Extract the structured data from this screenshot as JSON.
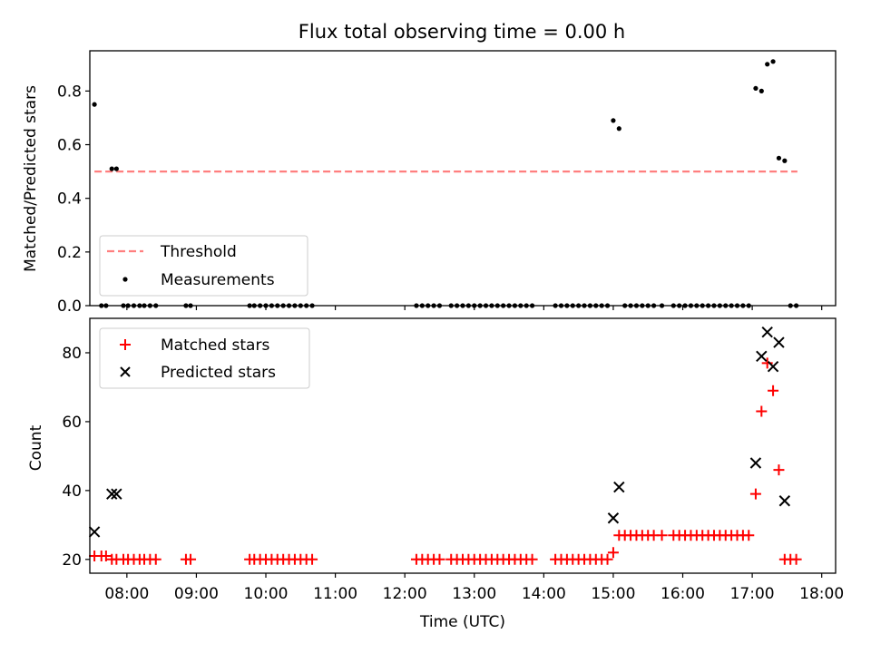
{
  "chart_data": [
    {
      "type": "scatter",
      "title": "Flux total observing time = 0.00 h",
      "xlabel": "",
      "ylabel": "Matched/Predicted stars",
      "xlim": [
        "07:28",
        "18:12"
      ],
      "ylim": [
        0,
        0.95
      ],
      "y_ticks": [
        "0.0",
        "0.2",
        "0.4",
        "0.6",
        "0.8"
      ],
      "legend": {
        "position": "lower-left",
        "entries": [
          "Threshold",
          "Measurements"
        ]
      },
      "series": [
        {
          "name": "Threshold",
          "kind": "dashed-line",
          "color": "#ff7f7f",
          "points": [
            [
              "07:32",
              0.5
            ],
            [
              "17:39",
              0.5
            ]
          ]
        },
        {
          "name": "Measurements",
          "kind": "dot",
          "color": "#000000",
          "points": [
            [
              "07:32",
              0.75
            ],
            [
              "07:38",
              0.0
            ],
            [
              "07:42",
              0.0
            ],
            [
              "07:47",
              0.51
            ],
            [
              "07:51",
              0.51
            ],
            [
              "07:57",
              0.0
            ],
            [
              "08:01",
              0.0
            ],
            [
              "08:06",
              0.0
            ],
            [
              "08:11",
              0.0
            ],
            [
              "08:15",
              0.0
            ],
            [
              "08:20",
              0.0
            ],
            [
              "08:25",
              0.0
            ],
            [
              "08:51",
              0.0
            ],
            [
              "08:55",
              0.0
            ],
            [
              "09:46",
              0.0
            ],
            [
              "09:50",
              0.0
            ],
            [
              "09:55",
              0.0
            ],
            [
              "10:00",
              0.0
            ],
            [
              "10:05",
              0.0
            ],
            [
              "10:10",
              0.0
            ],
            [
              "10:15",
              0.0
            ],
            [
              "10:20",
              0.0
            ],
            [
              "10:25",
              0.0
            ],
            [
              "10:30",
              0.0
            ],
            [
              "10:35",
              0.0
            ],
            [
              "10:40",
              0.0
            ],
            [
              "12:10",
              0.0
            ],
            [
              "12:15",
              0.0
            ],
            [
              "12:20",
              0.0
            ],
            [
              "12:25",
              0.0
            ],
            [
              "12:30",
              0.0
            ],
            [
              "12:40",
              0.0
            ],
            [
              "12:45",
              0.0
            ],
            [
              "12:50",
              0.0
            ],
            [
              "12:55",
              0.0
            ],
            [
              "13:00",
              0.0
            ],
            [
              "13:05",
              0.0
            ],
            [
              "13:10",
              0.0
            ],
            [
              "13:15",
              0.0
            ],
            [
              "13:20",
              0.0
            ],
            [
              "13:25",
              0.0
            ],
            [
              "13:30",
              0.0
            ],
            [
              "13:35",
              0.0
            ],
            [
              "13:40",
              0.0
            ],
            [
              "13:45",
              0.0
            ],
            [
              "13:50",
              0.0
            ],
            [
              "14:10",
              0.0
            ],
            [
              "14:15",
              0.0
            ],
            [
              "14:20",
              0.0
            ],
            [
              "14:25",
              0.0
            ],
            [
              "14:30",
              0.0
            ],
            [
              "14:35",
              0.0
            ],
            [
              "14:40",
              0.0
            ],
            [
              "14:45",
              0.0
            ],
            [
              "14:50",
              0.0
            ],
            [
              "14:55",
              0.0
            ],
            [
              "15:00",
              0.69
            ],
            [
              "15:05",
              0.66
            ],
            [
              "15:10",
              0.0
            ],
            [
              "15:15",
              0.0
            ],
            [
              "15:20",
              0.0
            ],
            [
              "15:25",
              0.0
            ],
            [
              "15:30",
              0.0
            ],
            [
              "15:35",
              0.0
            ],
            [
              "15:42",
              0.0
            ],
            [
              "15:52",
              0.0
            ],
            [
              "15:57",
              0.0
            ],
            [
              "16:02",
              0.0
            ],
            [
              "16:07",
              0.0
            ],
            [
              "16:12",
              0.0
            ],
            [
              "16:17",
              0.0
            ],
            [
              "16:22",
              0.0
            ],
            [
              "16:27",
              0.0
            ],
            [
              "16:32",
              0.0
            ],
            [
              "16:37",
              0.0
            ],
            [
              "16:42",
              0.0
            ],
            [
              "16:47",
              0.0
            ],
            [
              "16:52",
              0.0
            ],
            [
              "16:57",
              0.0
            ],
            [
              "17:03",
              0.81
            ],
            [
              "17:08",
              0.8
            ],
            [
              "17:13",
              0.9
            ],
            [
              "17:18",
              0.91
            ],
            [
              "17:23",
              0.55
            ],
            [
              "17:28",
              0.54
            ],
            [
              "17:33",
              0.0
            ],
            [
              "17:38",
              0.0
            ]
          ]
        }
      ]
    },
    {
      "type": "scatter",
      "title": "",
      "xlabel": "Time (UTC)",
      "ylabel": "Count",
      "xlim": [
        "07:28",
        "18:12"
      ],
      "ylim": [
        16,
        90
      ],
      "x_ticks": [
        "08:00",
        "09:00",
        "10:00",
        "11:00",
        "12:00",
        "13:00",
        "14:00",
        "15:00",
        "16:00",
        "17:00",
        "18:00"
      ],
      "y_ticks": [
        "20",
        "40",
        "60",
        "80"
      ],
      "legend": {
        "position": "upper-left",
        "entries": [
          "Matched stars",
          "Predicted stars"
        ]
      },
      "series": [
        {
          "name": "Matched stars",
          "kind": "plus",
          "color": "#ff0000",
          "points": [
            [
              "07:32",
              21
            ],
            [
              "07:38",
              21
            ],
            [
              "07:42",
              21
            ],
            [
              "07:47",
              20
            ],
            [
              "07:51",
              20
            ],
            [
              "07:57",
              20
            ],
            [
              "08:01",
              20
            ],
            [
              "08:06",
              20
            ],
            [
              "08:11",
              20
            ],
            [
              "08:15",
              20
            ],
            [
              "08:20",
              20
            ],
            [
              "08:25",
              20
            ],
            [
              "08:51",
              20
            ],
            [
              "08:55",
              20
            ],
            [
              "09:46",
              20
            ],
            [
              "09:50",
              20
            ],
            [
              "09:55",
              20
            ],
            [
              "10:00",
              20
            ],
            [
              "10:05",
              20
            ],
            [
              "10:10",
              20
            ],
            [
              "10:15",
              20
            ],
            [
              "10:20",
              20
            ],
            [
              "10:25",
              20
            ],
            [
              "10:30",
              20
            ],
            [
              "10:35",
              20
            ],
            [
              "10:40",
              20
            ],
            [
              "12:10",
              20
            ],
            [
              "12:15",
              20
            ],
            [
              "12:20",
              20
            ],
            [
              "12:25",
              20
            ],
            [
              "12:30",
              20
            ],
            [
              "12:40",
              20
            ],
            [
              "12:45",
              20
            ],
            [
              "12:50",
              20
            ],
            [
              "12:55",
              20
            ],
            [
              "13:00",
              20
            ],
            [
              "13:05",
              20
            ],
            [
              "13:10",
              20
            ],
            [
              "13:15",
              20
            ],
            [
              "13:20",
              20
            ],
            [
              "13:25",
              20
            ],
            [
              "13:30",
              20
            ],
            [
              "13:35",
              20
            ],
            [
              "13:40",
              20
            ],
            [
              "13:45",
              20
            ],
            [
              "13:50",
              20
            ],
            [
              "14:10",
              20
            ],
            [
              "14:15",
              20
            ],
            [
              "14:20",
              20
            ],
            [
              "14:25",
              20
            ],
            [
              "14:30",
              20
            ],
            [
              "14:35",
              20
            ],
            [
              "14:40",
              20
            ],
            [
              "14:45",
              20
            ],
            [
              "14:50",
              20
            ],
            [
              "14:55",
              20
            ],
            [
              "15:00",
              22
            ],
            [
              "15:05",
              27
            ],
            [
              "15:10",
              27
            ],
            [
              "15:15",
              27
            ],
            [
              "15:20",
              27
            ],
            [
              "15:25",
              27
            ],
            [
              "15:30",
              27
            ],
            [
              "15:35",
              27
            ],
            [
              "15:42",
              27
            ],
            [
              "15:52",
              27
            ],
            [
              "15:57",
              27
            ],
            [
              "16:02",
              27
            ],
            [
              "16:07",
              27
            ],
            [
              "16:12",
              27
            ],
            [
              "16:17",
              27
            ],
            [
              "16:22",
              27
            ],
            [
              "16:27",
              27
            ],
            [
              "16:32",
              27
            ],
            [
              "16:37",
              27
            ],
            [
              "16:42",
              27
            ],
            [
              "16:47",
              27
            ],
            [
              "16:52",
              27
            ],
            [
              "16:57",
              27
            ],
            [
              "17:03",
              39
            ],
            [
              "17:08",
              63
            ],
            [
              "17:13",
              77
            ],
            [
              "17:18",
              69
            ],
            [
              "17:23",
              46
            ],
            [
              "17:28",
              20
            ],
            [
              "17:33",
              20
            ],
            [
              "17:38",
              20
            ]
          ]
        },
        {
          "name": "Predicted stars",
          "kind": "x",
          "color": "#000000",
          "points": [
            [
              "07:32",
              28
            ],
            [
              "07:47",
              39
            ],
            [
              "07:51",
              39
            ],
            [
              "15:00",
              32
            ],
            [
              "15:05",
              41
            ],
            [
              "17:03",
              48
            ],
            [
              "17:08",
              79
            ],
            [
              "17:13",
              86
            ],
            [
              "17:18",
              76
            ],
            [
              "17:23",
              83
            ],
            [
              "17:28",
              37
            ]
          ]
        }
      ]
    }
  ]
}
